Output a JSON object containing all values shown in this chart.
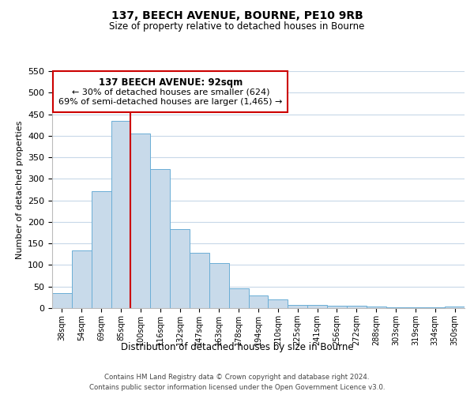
{
  "title": "137, BEECH AVENUE, BOURNE, PE10 9RB",
  "subtitle": "Size of property relative to detached houses in Bourne",
  "xlabel": "Distribution of detached houses by size in Bourne",
  "ylabel": "Number of detached properties",
  "bar_labels": [
    "38sqm",
    "54sqm",
    "69sqm",
    "85sqm",
    "100sqm",
    "116sqm",
    "132sqm",
    "147sqm",
    "163sqm",
    "178sqm",
    "194sqm",
    "210sqm",
    "225sqm",
    "241sqm",
    "256sqm",
    "272sqm",
    "288sqm",
    "303sqm",
    "319sqm",
    "334sqm",
    "350sqm"
  ],
  "bar_values": [
    35,
    133,
    272,
    435,
    405,
    323,
    184,
    128,
    104,
    46,
    30,
    20,
    8,
    8,
    5,
    5,
    3,
    2,
    2,
    2,
    3
  ],
  "bar_color": "#c8daea",
  "bar_edge_color": "#6baed6",
  "vline_x": 3.5,
  "vline_color": "#cc0000",
  "ylim": [
    0,
    550
  ],
  "yticks": [
    0,
    50,
    100,
    150,
    200,
    250,
    300,
    350,
    400,
    450,
    500,
    550
  ],
  "annotation_title": "137 BEECH AVENUE: 92sqm",
  "annotation_line1": "← 30% of detached houses are smaller (624)",
  "annotation_line2": "69% of semi-detached houses are larger (1,465) →",
  "footer_line1": "Contains HM Land Registry data © Crown copyright and database right 2024.",
  "footer_line2": "Contains public sector information licensed under the Open Government Licence v3.0.",
  "background_color": "#ffffff",
  "grid_color": "#c8d8e8"
}
